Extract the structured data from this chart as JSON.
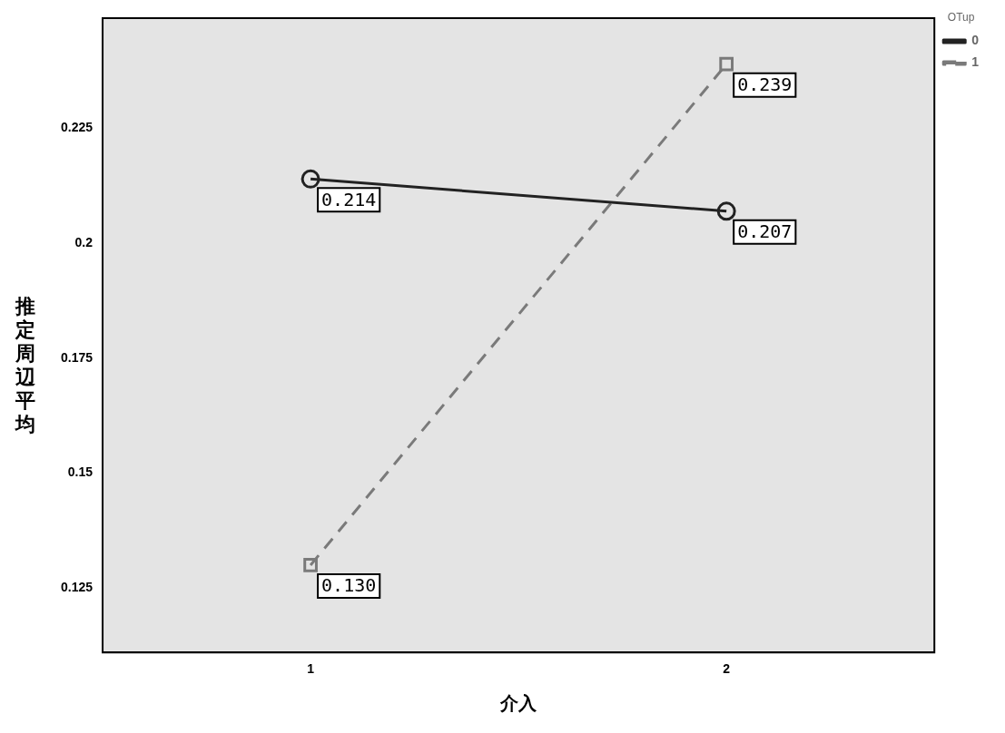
{
  "chart_data": {
    "type": "line",
    "xlabel": "介入",
    "ylabel": "推定周辺平均",
    "legend_title": "OTup",
    "categories": [
      "1",
      "2"
    ],
    "series": [
      {
        "name": "0",
        "color": "#222222",
        "values": [
          0.214,
          0.207
        ],
        "value_labels": [
          "0.214",
          "0.207"
        ],
        "marker": "circle",
        "line_style": "solid"
      },
      {
        "name": "1",
        "color": "#7a7a7a",
        "values": [
          0.13,
          0.239
        ],
        "value_labels": [
          "0.130",
          "0.239"
        ],
        "marker": "square",
        "line_style": "dashed"
      }
    ],
    "ylim": [
      0.111,
      0.249
    ],
    "yticks": [
      0.125,
      0.15,
      0.175,
      0.2,
      0.225
    ],
    "grid": false,
    "legend": "top right"
  }
}
